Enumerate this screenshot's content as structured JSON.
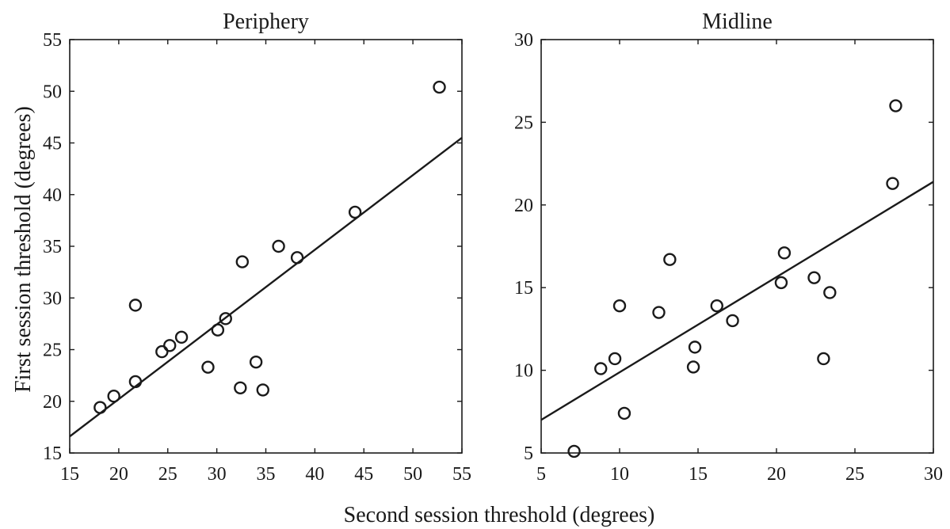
{
  "figure": {
    "xlabel": "Second session threshold (degrees)",
    "ylabel": "First session threshold (degrees)"
  },
  "chart_data": [
    {
      "type": "scatter",
      "title": "Periphery",
      "xlim": [
        15,
        55
      ],
      "ylim": [
        15,
        55
      ],
      "xticks": [
        15,
        20,
        25,
        30,
        35,
        40,
        45,
        50,
        55
      ],
      "yticks": [
        15,
        20,
        25,
        30,
        35,
        40,
        45,
        50,
        55
      ],
      "grid": false,
      "marker": "open-circle",
      "color": "#1a1a1a",
      "points": [
        {
          "x": 18.1,
          "y": 19.4
        },
        {
          "x": 19.5,
          "y": 20.5
        },
        {
          "x": 21.7,
          "y": 21.9
        },
        {
          "x": 21.7,
          "y": 29.3
        },
        {
          "x": 24.4,
          "y": 24.8
        },
        {
          "x": 25.2,
          "y": 25.4
        },
        {
          "x": 26.4,
          "y": 26.2
        },
        {
          "x": 29.1,
          "y": 23.3
        },
        {
          "x": 30.1,
          "y": 26.9
        },
        {
          "x": 30.9,
          "y": 28.0
        },
        {
          "x": 32.4,
          "y": 21.3
        },
        {
          "x": 32.6,
          "y": 33.5
        },
        {
          "x": 34.0,
          "y": 23.8
        },
        {
          "x": 34.7,
          "y": 21.1
        },
        {
          "x": 36.3,
          "y": 35.0
        },
        {
          "x": 38.2,
          "y": 33.9
        },
        {
          "x": 44.1,
          "y": 38.3
        },
        {
          "x": 52.7,
          "y": 50.4
        }
      ],
      "fit_line": {
        "x": [
          15,
          55
        ],
        "y": [
          16.6,
          45.5
        ]
      }
    },
    {
      "type": "scatter",
      "title": "Midline",
      "xlim": [
        5,
        30
      ],
      "ylim": [
        5,
        30
      ],
      "xticks": [
        5,
        10,
        15,
        20,
        25,
        30
      ],
      "yticks": [
        5,
        10,
        15,
        20,
        25,
        30
      ],
      "grid": false,
      "marker": "open-circle",
      "color": "#1a1a1a",
      "points": [
        {
          "x": 7.1,
          "y": 5.1
        },
        {
          "x": 8.8,
          "y": 10.1
        },
        {
          "x": 9.7,
          "y": 10.7
        },
        {
          "x": 10.0,
          "y": 13.9
        },
        {
          "x": 10.3,
          "y": 7.4
        },
        {
          "x": 12.5,
          "y": 13.5
        },
        {
          "x": 13.2,
          "y": 16.7
        },
        {
          "x": 14.7,
          "y": 10.2
        },
        {
          "x": 14.8,
          "y": 11.4
        },
        {
          "x": 16.2,
          "y": 13.9
        },
        {
          "x": 17.2,
          "y": 13.0
        },
        {
          "x": 20.3,
          "y": 15.3
        },
        {
          "x": 20.5,
          "y": 17.1
        },
        {
          "x": 22.4,
          "y": 15.6
        },
        {
          "x": 23.0,
          "y": 10.7
        },
        {
          "x": 23.4,
          "y": 14.7
        },
        {
          "x": 27.4,
          "y": 21.3
        },
        {
          "x": 27.6,
          "y": 26.0
        }
      ],
      "fit_line": {
        "x": [
          5,
          30
        ],
        "y": [
          7.0,
          21.4
        ]
      }
    }
  ]
}
